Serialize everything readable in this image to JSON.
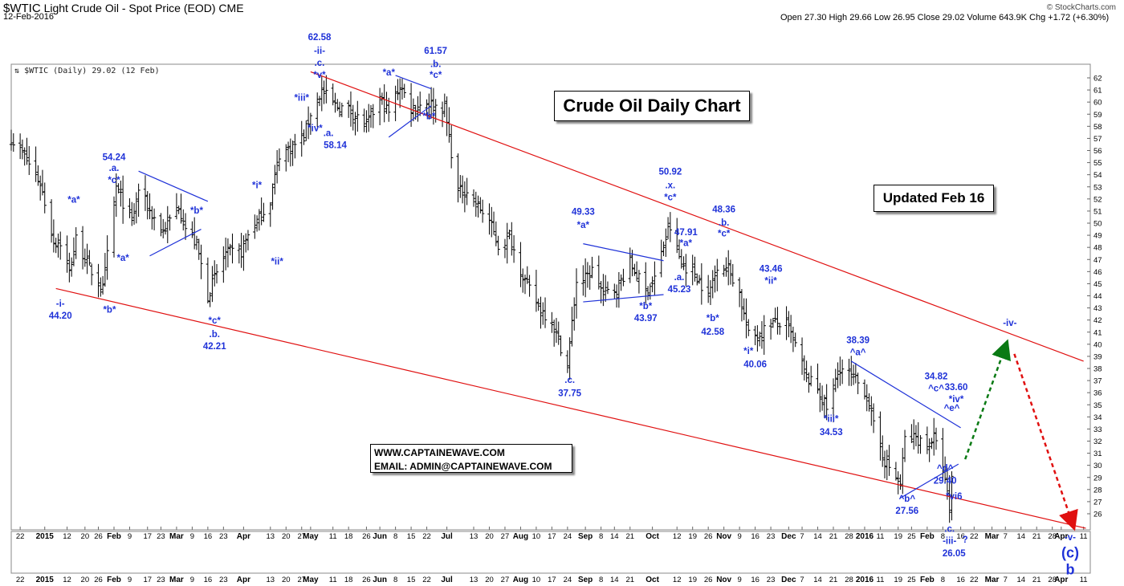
{
  "header": {
    "symbol": "$WTIC",
    "name": "Light Crude Oil - Spot Price (EOD)",
    "exchange": "CME",
    "date": "12-Feb-2016",
    "brand": "© StockCharts.com",
    "quote": "Open 27.30  High 29.66  Low 26.95  Close 29.02  Volume 643.9K  Chg +1.72 (+6.30%)",
    "legend": "$WTIC (Daily) 29.02 (12 Feb)"
  },
  "annotations": {
    "title_box": "Crude Oil Daily Chart",
    "updated_box": "Updated Feb 16",
    "website": "WWW.CAPTAINEWAVE.COM",
    "email": "EMAIL: ADMIN@CAPTAINEWAVE.COM"
  },
  "chart_data": {
    "type": "ohlc-bar",
    "title": "$WTIC (Daily) 29.02 (12 Feb)",
    "ylim": [
      25,
      63
    ],
    "y_ticks": [
      26,
      27,
      28,
      29,
      30,
      31,
      32,
      33,
      34,
      35,
      36,
      37,
      38,
      39,
      40,
      41,
      42,
      43,
      44,
      45,
      46,
      47,
      48,
      49,
      50,
      51,
      52,
      53,
      54,
      55,
      56,
      57,
      58,
      59,
      60,
      61,
      62
    ],
    "x_range": [
      "2014-12-18",
      "2016-04-14"
    ],
    "x_tick_labels": [
      {
        "label": "22",
        "date": "2014-12-22"
      },
      {
        "label": "2015",
        "date": "2015-01-02",
        "bold": true
      },
      {
        "label": "12",
        "date": "2015-01-12"
      },
      {
        "label": "20",
        "date": "2015-01-20"
      },
      {
        "label": "26",
        "date": "2015-01-26"
      },
      {
        "label": "Feb",
        "date": "2015-02-02",
        "bold": true
      },
      {
        "label": "9",
        "date": "2015-02-09"
      },
      {
        "label": "17",
        "date": "2015-02-17"
      },
      {
        "label": "23",
        "date": "2015-02-23"
      },
      {
        "label": "Mar",
        "date": "2015-03-02",
        "bold": true
      },
      {
        "label": "9",
        "date": "2015-03-09"
      },
      {
        "label": "16",
        "date": "2015-03-16"
      },
      {
        "label": "23",
        "date": "2015-03-23"
      },
      {
        "label": "Apr",
        "date": "2015-04-01",
        "bold": true
      },
      {
        "label": "13",
        "date": "2015-04-13"
      },
      {
        "label": "20",
        "date": "2015-04-20"
      },
      {
        "label": "27",
        "date": "2015-04-27"
      },
      {
        "label": "May",
        "date": "2015-05-01",
        "bold": true
      },
      {
        "label": "11",
        "date": "2015-05-11"
      },
      {
        "label": "18",
        "date": "2015-05-18"
      },
      {
        "label": "26",
        "date": "2015-05-26"
      },
      {
        "label": "Jun",
        "date": "2015-06-01",
        "bold": true
      },
      {
        "label": "8",
        "date": "2015-06-08"
      },
      {
        "label": "15",
        "date": "2015-06-15"
      },
      {
        "label": "22",
        "date": "2015-06-22"
      },
      {
        "label": "Jul",
        "date": "2015-07-01",
        "bold": true
      },
      {
        "label": "13",
        "date": "2015-07-13"
      },
      {
        "label": "20",
        "date": "2015-07-20"
      },
      {
        "label": "27",
        "date": "2015-07-27"
      },
      {
        "label": "Aug",
        "date": "2015-08-03",
        "bold": true
      },
      {
        "label": "10",
        "date": "2015-08-10"
      },
      {
        "label": "17",
        "date": "2015-08-17"
      },
      {
        "label": "24",
        "date": "2015-08-24"
      },
      {
        "label": "Sep",
        "date": "2015-09-01",
        "bold": true
      },
      {
        "label": "8",
        "date": "2015-09-08"
      },
      {
        "label": "14",
        "date": "2015-09-14"
      },
      {
        "label": "21",
        "date": "2015-09-21"
      },
      {
        "label": "Oct",
        "date": "2015-10-01",
        "bold": true
      },
      {
        "label": "12",
        "date": "2015-10-12"
      },
      {
        "label": "19",
        "date": "2015-10-19"
      },
      {
        "label": "26",
        "date": "2015-10-26"
      },
      {
        "label": "Nov",
        "date": "2015-11-02",
        "bold": true
      },
      {
        "label": "9",
        "date": "2015-11-09"
      },
      {
        "label": "16",
        "date": "2015-11-16"
      },
      {
        "label": "23",
        "date": "2015-11-23"
      },
      {
        "label": "Dec",
        "date": "2015-12-01",
        "bold": true
      },
      {
        "label": "7",
        "date": "2015-12-07"
      },
      {
        "label": "14",
        "date": "2015-12-14"
      },
      {
        "label": "21",
        "date": "2015-12-21"
      },
      {
        "label": "28",
        "date": "2015-12-28"
      },
      {
        "label": "2016",
        "date": "2016-01-04",
        "bold": true
      },
      {
        "label": "11",
        "date": "2016-01-11"
      },
      {
        "label": "19",
        "date": "2016-01-19"
      },
      {
        "label": "25",
        "date": "2016-01-25"
      },
      {
        "label": "Feb",
        "date": "2016-02-01",
        "bold": true
      },
      {
        "label": "8",
        "date": "2016-02-08"
      },
      {
        "label": "16",
        "date": "2016-02-16"
      },
      {
        "label": "22",
        "date": "2016-02-22"
      },
      {
        "label": "Mar",
        "date": "2016-03-01",
        "bold": true
      },
      {
        "label": "7",
        "date": "2016-03-07"
      },
      {
        "label": "14",
        "date": "2016-03-14"
      },
      {
        "label": "21",
        "date": "2016-03-21"
      },
      {
        "label": "28",
        "date": "2016-03-28"
      },
      {
        "label": "Apr",
        "date": "2016-04-01",
        "bold": true
      },
      {
        "label": "11",
        "date": "2016-04-11"
      }
    ],
    "price_path": [
      [
        "2014-12-18",
        57.0
      ],
      [
        "2014-12-24",
        55.5
      ],
      [
        "2014-12-31",
        53.3
      ],
      [
        "2015-01-06",
        48.5
      ],
      [
        "2015-01-09",
        48.4
      ],
      [
        "2015-01-13",
        45.9
      ],
      [
        "2015-01-16",
        48.7
      ],
      [
        "2015-01-22",
        46.3
      ],
      [
        "2015-01-28",
        44.5
      ],
      [
        "2015-02-03",
        53.0
      ],
      [
        "2015-02-06",
        51.7
      ],
      [
        "2015-02-10",
        50.0
      ],
      [
        "2015-02-13",
        52.8
      ],
      [
        "2015-02-18",
        51.0
      ],
      [
        "2015-02-24",
        49.3
      ],
      [
        "2015-03-03",
        51.5
      ],
      [
        "2015-03-06",
        49.6
      ],
      [
        "2015-03-11",
        48.2
      ],
      [
        "2015-03-16",
        44.0
      ],
      [
        "2015-03-19",
        45.5
      ],
      [
        "2015-03-24",
        47.5
      ],
      [
        "2015-03-31",
        47.6
      ],
      [
        "2015-04-03",
        49.1
      ],
      [
        "2015-04-08",
        50.4
      ],
      [
        "2015-04-13",
        51.9
      ],
      [
        "2015-04-17",
        55.7
      ],
      [
        "2015-04-22",
        56.2
      ],
      [
        "2015-04-28",
        57.1
      ],
      [
        "2015-05-01",
        59.1
      ],
      [
        "2015-05-06",
        60.9
      ],
      [
        "2015-05-12",
        59.7
      ],
      [
        "2015-05-18",
        59.4
      ],
      [
        "2015-05-26",
        58.0
      ],
      [
        "2015-06-01",
        60.3
      ],
      [
        "2015-06-05",
        59.1
      ],
      [
        "2015-06-10",
        61.4
      ],
      [
        "2015-06-15",
        59.5
      ],
      [
        "2015-06-22",
        60.0
      ],
      [
        "2015-06-25",
        59.7
      ],
      [
        "2015-06-30",
        59.5
      ],
      [
        "2015-07-02",
        57.0
      ],
      [
        "2015-07-06",
        52.5
      ],
      [
        "2015-07-10",
        52.7
      ],
      [
        "2015-07-15",
        51.4
      ],
      [
        "2015-07-20",
        50.2
      ],
      [
        "2015-07-24",
        48.1
      ],
      [
        "2015-07-29",
        48.8
      ],
      [
        "2015-08-05",
        45.2
      ],
      [
        "2015-08-11",
        43.1
      ],
      [
        "2015-08-17",
        41.9
      ],
      [
        "2015-08-24",
        38.2
      ],
      [
        "2015-08-28",
        45.2
      ],
      [
        "2015-09-01",
        45.4
      ],
      [
        "2015-09-04",
        46.1
      ],
      [
        "2015-09-09",
        44.2
      ],
      [
        "2015-09-15",
        44.6
      ],
      [
        "2015-09-21",
        46.7
      ],
      [
        "2015-09-28",
        44.4
      ],
      [
        "2015-10-02",
        45.5
      ],
      [
        "2015-10-08",
        49.4
      ],
      [
        "2015-10-09",
        49.6
      ],
      [
        "2015-10-14",
        46.6
      ],
      [
        "2015-10-20",
        45.9
      ],
      [
        "2015-10-26",
        43.9
      ],
      [
        "2015-10-30",
        46.6
      ],
      [
        "2015-11-04",
        46.3
      ],
      [
        "2015-11-09",
        44.2
      ],
      [
        "2015-11-13",
        40.7
      ],
      [
        "2015-11-18",
        40.8
      ],
      [
        "2015-11-23",
        41.8
      ],
      [
        "2015-11-30",
        41.6
      ],
      [
        "2015-12-04",
        39.9
      ],
      [
        "2015-12-09",
        37.2
      ],
      [
        "2015-12-14",
        36.3
      ],
      [
        "2015-12-18",
        34.7
      ],
      [
        "2015-12-24",
        38.1
      ],
      [
        "2015-12-31",
        37.0
      ],
      [
        "2016-01-05",
        35.9
      ],
      [
        "2016-01-08",
        33.2
      ],
      [
        "2016-01-13",
        30.4
      ],
      [
        "2016-01-20",
        28.4
      ],
      [
        "2016-01-22",
        32.2
      ],
      [
        "2016-01-27",
        32.3
      ],
      [
        "2016-02-01",
        31.6
      ],
      [
        "2016-02-04",
        32.3
      ],
      [
        "2016-02-08",
        29.7
      ],
      [
        "2016-02-11",
        26.2
      ],
      [
        "2016-02-12",
        29.0
      ]
    ],
    "trendlines_red": [
      {
        "name": "channel-upper",
        "from": [
          "2015-05-01",
          62.5
        ],
        "to": [
          "2016-04-11",
          38.6
        ]
      },
      {
        "name": "channel-lower",
        "from": [
          "2015-01-07",
          44.6
        ],
        "to": [
          "2016-04-12",
          24.8
        ]
      }
    ],
    "trendlines_blue": [
      {
        "from": [
          "2015-02-13",
          54.3
        ],
        "to": [
          "2015-03-16",
          51.8
        ]
      },
      {
        "from": [
          "2015-02-18",
          47.3
        ],
        "to": [
          "2015-03-13",
          49.5
        ]
      },
      {
        "from": [
          "2015-06-05",
          57.1
        ],
        "to": [
          "2015-06-24",
          59.7
        ]
      },
      {
        "from": [
          "2015-06-08",
          62.2
        ],
        "to": [
          "2015-06-24",
          61.1
        ]
      },
      {
        "from": [
          "2015-08-31",
          48.3
        ],
        "to": [
          "2015-10-06",
          46.9
        ]
      },
      {
        "from": [
          "2015-08-31",
          43.5
        ],
        "to": [
          "2015-10-06",
          44.1
        ]
      },
      {
        "from": [
          "2015-12-29",
          38.6
        ],
        "to": [
          "2016-02-16",
          33.1
        ]
      },
      {
        "from": [
          "2016-01-20",
          27.3
        ],
        "to": [
          "2016-02-15",
          30.1
        ]
      }
    ],
    "projections": [
      {
        "name": "projection-up-arrow",
        "color": "#0a7a14",
        "from": [
          "2016-02-18",
          30.5
        ],
        "to": [
          "2016-03-07",
          39.8
        ]
      },
      {
        "name": "projection-down-arrow",
        "color": "#e01010",
        "from": [
          "2016-03-11",
          39.2
        ],
        "to": [
          "2016-04-06",
          25.2
        ]
      }
    ],
    "wave_labels": [
      {
        "text": "54.24",
        "date": "2015-02-02",
        "y": 55.2
      },
      {
        "text": ".a.",
        "date": "2015-02-02",
        "y": 54.3
      },
      {
        "text": "*c*",
        "date": "2015-02-02",
        "y": 53.3
      },
      {
        "text": "*a*",
        "date": "2015-01-15",
        "y": 51.7
      },
      {
        "text": "*a*",
        "date": "2015-02-06",
        "y": 46.9
      },
      {
        "text": "*b*",
        "date": "2015-03-11",
        "y": 50.8
      },
      {
        "text": "*i*",
        "date": "2015-04-07",
        "y": 52.9
      },
      {
        "text": "*ii*",
        "date": "2015-04-16",
        "y": 46.6
      },
      {
        "text": "-i-",
        "date": "2015-01-09",
        "y": 43.1
      },
      {
        "text": "44.20",
        "date": "2015-01-09",
        "y": 42.1
      },
      {
        "text": "*b*",
        "date": "2015-01-31",
        "y": 42.6
      },
      {
        "text": "*c*",
        "date": "2015-03-19",
        "y": 41.7
      },
      {
        "text": ".b.",
        "date": "2015-03-19",
        "y": 40.6
      },
      {
        "text": "42.21",
        "date": "2015-03-19",
        "y": 39.6
      },
      {
        "text": "62.58",
        "date": "2015-05-05",
        "y": 65.1
      },
      {
        "text": "-ii-",
        "date": "2015-05-05",
        "y": 64.0
      },
      {
        "text": ".c.",
        "date": "2015-05-05",
        "y": 63.0
      },
      {
        "text": "*v*",
        "date": "2015-05-05",
        "y": 62.0
      },
      {
        "text": "*iii*",
        "date": "2015-04-27",
        "y": 60.1
      },
      {
        "text": "*iv*",
        "date": "2015-05-03",
        "y": 57.6
      },
      {
        "text": ".a.",
        "date": "2015-05-09",
        "y": 57.2
      },
      {
        "text": "58.14",
        "date": "2015-05-12",
        "y": 56.2
      },
      {
        "text": "*a*",
        "date": "2015-06-05",
        "y": 62.2
      },
      {
        "text": "61.57",
        "date": "2015-06-26",
        "y": 64.0
      },
      {
        "text": ".b.",
        "date": "2015-06-26",
        "y": 62.9
      },
      {
        "text": "*c*",
        "date": "2015-06-26",
        "y": 62.0
      },
      {
        "text": "*b*",
        "date": "2015-06-23",
        "y": 58.6
      },
      {
        "text": "49.33",
        "date": "2015-08-31",
        "y": 50.7
      },
      {
        "text": "*a*",
        "date": "2015-08-31",
        "y": 49.6
      },
      {
        "text": "*b*",
        "date": "2015-09-28",
        "y": 42.9
      },
      {
        "text": "43.97",
        "date": "2015-09-28",
        "y": 41.9
      },
      {
        "text": ".c.",
        "date": "2015-08-25",
        "y": 36.8
      },
      {
        "text": "37.75",
        "date": "2015-08-25",
        "y": 35.7
      },
      {
        "text": "50.92",
        "date": "2015-10-09",
        "y": 54.0
      },
      {
        "text": ".x.",
        "date": "2015-10-09",
        "y": 52.9
      },
      {
        "text": "*c*",
        "date": "2015-10-09",
        "y": 51.9
      },
      {
        "text": "47.91",
        "date": "2015-10-16",
        "y": 49.0
      },
      {
        "text": "*a*",
        "date": "2015-10-16",
        "y": 48.1
      },
      {
        "text": ".a.",
        "date": "2015-10-13",
        "y": 45.3
      },
      {
        "text": "45.23",
        "date": "2015-10-13",
        "y": 44.3
      },
      {
        "text": "48.36",
        "date": "2015-11-02",
        "y": 50.9
      },
      {
        "text": ".b.",
        "date": "2015-11-02",
        "y": 49.8
      },
      {
        "text": "*c*",
        "date": "2015-11-02",
        "y": 48.9
      },
      {
        "text": "*b*",
        "date": "2015-10-28",
        "y": 41.9
      },
      {
        "text": "42.58",
        "date": "2015-10-28",
        "y": 40.8
      },
      {
        "text": "43.46",
        "date": "2015-11-23",
        "y": 46.0
      },
      {
        "text": "*ii*",
        "date": "2015-11-23",
        "y": 45.0
      },
      {
        "text": "*i*",
        "date": "2015-11-13",
        "y": 39.2
      },
      {
        "text": "40.06",
        "date": "2015-11-16",
        "y": 38.1
      },
      {
        "text": "*iii*",
        "date": "2015-12-20",
        "y": 33.6
      },
      {
        "text": "34.53",
        "date": "2015-12-20",
        "y": 32.5
      },
      {
        "text": "38.39",
        "date": "2016-01-01",
        "y": 40.1
      },
      {
        "text": "^a^",
        "date": "2016-01-01",
        "y": 39.1
      },
      {
        "text": "34.82",
        "date": "2016-02-05",
        "y": 37.1
      },
      {
        "text": "^c^",
        "date": "2016-02-05",
        "y": 36.1
      },
      {
        "text": "33.60",
        "date": "2016-02-14",
        "y": 36.2
      },
      {
        "text": "*iv*",
        "date": "2016-02-14",
        "y": 35.2
      },
      {
        "text": "^e^",
        "date": "2016-02-12",
        "y": 34.5
      },
      {
        "text": "^d^",
        "date": "2016-02-09",
        "y": 29.5
      },
      {
        "text": "29.40",
        "date": "2016-02-09",
        "y": 28.5
      },
      {
        "text": "^b^",
        "date": "2016-01-23",
        "y": 27.0
      },
      {
        "text": "27.56",
        "date": "2016-01-23",
        "y": 26.0
      },
      {
        "text": "*vi6",
        "date": "2016-02-13",
        "y": 27.2
      },
      {
        "text": ".c.",
        "date": "2016-02-11",
        "y": 24.5
      },
      {
        "text": "-iii-",
        "date": "2016-02-11",
        "y": 23.5
      },
      {
        "text": "?",
        "date": "2016-02-18",
        "y": 23.6
      },
      {
        "text": "26.05",
        "date": "2016-02-13",
        "y": 22.5
      },
      {
        "text": "-iv-",
        "date": "2016-03-09",
        "y": 41.5
      },
      {
        "text": "-v-",
        "date": "2016-04-05",
        "y": 23.8
      },
      {
        "text": "(c)",
        "date": "2016-04-05",
        "y": 22.4,
        "big": true
      },
      {
        "text": "b",
        "date": "2016-04-05",
        "y": 21.0,
        "big": true
      }
    ]
  }
}
